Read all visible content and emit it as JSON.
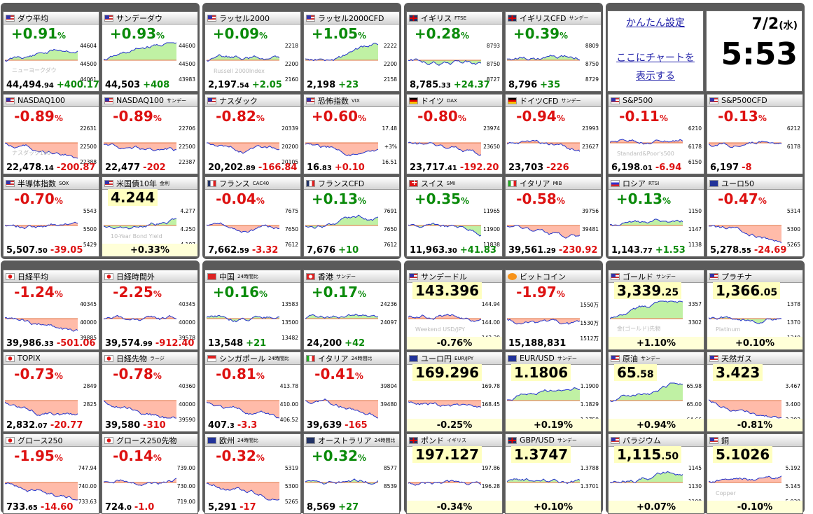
{
  "widgets": {
    "settings_link": "かんたん設定",
    "chart_link_1": "ここにチャートを",
    "chart_link_2": "表示する",
    "date": "7/2",
    "weekday": "(水)",
    "time": "5:53"
  },
  "tiles": [
    {
      "flag": "us",
      "name": "ダウ平均",
      "sub": "",
      "change": "+0.91",
      "unit": "%",
      "dir": "up",
      "price": "44,494",
      "price_dec": ".94",
      "chg": "+400.17",
      "cdir": "up",
      "ticks": [
        "44604",
        "44500",
        "44061"
      ],
      "wm": "ニューヨークダウ",
      "path": "up"
    },
    {
      "flag": "us",
      "name": "サンデーダウ",
      "sub": "",
      "change": "+0.93",
      "unit": "%",
      "dir": "up",
      "price": "44,503",
      "price_dec": "",
      "chg": "+408",
      "cdir": "up",
      "ticks": [
        "44600",
        "44500",
        "43983"
      ],
      "wm": "",
      "path": "up"
    },
    {
      "flag": "us",
      "name": "ラッセル2000",
      "sub": "",
      "change": "+0.09",
      "unit": "%",
      "dir": "up",
      "price": "2,197",
      "price_dec": ".54",
      "chg": "+2.05",
      "cdir": "up",
      "ticks": [
        "2218",
        "2200",
        "2160"
      ],
      "wm": "Russell 2000Index",
      "path": "flat"
    },
    {
      "flag": "us",
      "name": "ラッセル2000CFD",
      "sub": "",
      "change": "+1.05",
      "unit": "%",
      "dir": "up",
      "price": "2,198",
      "price_dec": "",
      "chg": "+23",
      "cdir": "up",
      "ticks": [
        "2222",
        "2200",
        "2158"
      ],
      "wm": "",
      "path": "up"
    },
    {
      "flag": "gb",
      "name": "イギリス",
      "sub": "FTSE",
      "change": "+0.28",
      "unit": "%",
      "dir": "up",
      "price": "8,785",
      "price_dec": ".33",
      "chg": "+24.37",
      "cdir": "up",
      "ticks": [
        "8793",
        "8750",
        "8727"
      ],
      "wm": "",
      "path": "flat"
    },
    {
      "flag": "gb",
      "name": "イギリスCFD",
      "sub": "サンデー",
      "change": "+0.39",
      "unit": "%",
      "dir": "up",
      "price": "8,796",
      "price_dec": "",
      "chg": "+35",
      "cdir": "up",
      "ticks": [
        "8809",
        "8750",
        "8729"
      ],
      "wm": "",
      "path": "flat"
    },
    {
      "flag": "us",
      "name": "NASDAQ100",
      "sub": "",
      "change": "-0.89",
      "unit": "%",
      "dir": "dn",
      "price": "22,478",
      "price_dec": ".14",
      "chg": "-200.87",
      "cdir": "dn",
      "ticks": [
        "22631",
        "22500",
        "22388"
      ],
      "wm": "ナスダック100",
      "path": "down"
    },
    {
      "flag": "us",
      "name": "NASDAQ100",
      "sub": "サンデー",
      "change": "-0.89",
      "unit": "%",
      "dir": "dn",
      "price": "22,477",
      "price_dec": "",
      "chg": "-202",
      "cdir": "dn",
      "ticks": [
        "22706",
        "22500",
        "22387"
      ],
      "wm": "",
      "path": "down"
    },
    {
      "flag": "us",
      "name": "ナスダック",
      "sub": "",
      "change": "-0.82",
      "unit": "%",
      "dir": "dn",
      "price": "20,202",
      "price_dec": ".89",
      "chg": "-166.84",
      "cdir": "dn",
      "ticks": [
        "20339",
        "20200",
        "20105"
      ],
      "wm": "",
      "path": "down"
    },
    {
      "flag": "us",
      "name": "恐怖指数",
      "sub": "VIX",
      "change": "+0.60",
      "unit": "%",
      "dir": "dn",
      "price": "16",
      "price_dec": ".83",
      "chg": "+0.10",
      "cdir": "dn",
      "ticks": [
        "17.48",
        "+3%",
        "16.51"
      ],
      "wm": "",
      "path": "down"
    },
    {
      "flag": "de",
      "name": "ドイツ",
      "sub": "DAX",
      "change": "-0.80",
      "unit": "%",
      "dir": "dn",
      "price": "23,717",
      "price_dec": ".41",
      "chg": "-192.20",
      "cdir": "dn",
      "ticks": [
        "23974",
        "23650",
        ""
      ],
      "wm": "",
      "path": "down"
    },
    {
      "flag": "de",
      "name": "ドイツCFD",
      "sub": "サンデー",
      "change": "-0.94",
      "unit": "%",
      "dir": "dn",
      "price": "23,703",
      "price_dec": "",
      "chg": "-226",
      "cdir": "dn",
      "ticks": [
        "23993",
        "23627",
        ""
      ],
      "wm": "",
      "path": "down"
    },
    {
      "flag": "us",
      "name": "S&P500",
      "sub": "",
      "change": "-0.11",
      "unit": "%",
      "dir": "dn",
      "price": "6,198",
      "price_dec": ".01",
      "chg": "-6.94",
      "cdir": "dn",
      "ticks": [
        "6210",
        "6178",
        "6150"
      ],
      "wm": "Standard&Poor's500",
      "path": "flat"
    },
    {
      "flag": "us",
      "name": "S&P500CFD",
      "sub": "",
      "change": "-0.13",
      "unit": "%",
      "dir": "dn",
      "price": "6,197",
      "price_dec": "",
      "chg": "-8",
      "cdir": "dn",
      "ticks": [
        "6212",
        "6178",
        ""
      ],
      "wm": "",
      "path": "flat"
    },
    {
      "flag": "us",
      "name": "半導体指数",
      "sub": "SOX",
      "change": "-0.70",
      "unit": "%",
      "dir": "dn",
      "price": "5,507",
      "price_dec": ".50",
      "chg": "-39.05",
      "cdir": "dn",
      "ticks": [
        "5543",
        "5500",
        "5429"
      ],
      "wm": "",
      "path": "flat"
    },
    {
      "flag": "us",
      "name": "米国債10年",
      "sub": "金利",
      "change": "4.244",
      "unit": "",
      "dir": "big",
      "price": "",
      "price_dec": "",
      "chg": "+0.33%",
      "cdir": "up",
      "ticks": [
        "4.277",
        "4.250",
        "4.187"
      ],
      "wm": "10-Year Bond Yield",
      "path": "up"
    },
    {
      "flag": "fr",
      "name": "フランス",
      "sub": "CAC40",
      "change": "-0.04",
      "unit": "%",
      "dir": "dn",
      "price": "7,662",
      "price_dec": ".59",
      "chg": "-3.32",
      "cdir": "dn",
      "ticks": [
        "7675",
        "7650",
        "7612"
      ],
      "wm": "",
      "path": "flat"
    },
    {
      "flag": "fr",
      "name": "フランスCFD",
      "sub": "",
      "change": "+0.13",
      "unit": "%",
      "dir": "up",
      "price": "7,676",
      "price_dec": "",
      "chg": "+10",
      "cdir": "up",
      "ticks": [
        "7691",
        "7650",
        "7612"
      ],
      "wm": "",
      "path": "flat"
    },
    {
      "flag": "ch",
      "name": "スイス",
      "sub": "SMI",
      "change": "+0.35",
      "unit": "%",
      "dir": "up",
      "price": "11,963",
      "price_dec": ".30",
      "chg": "+41.83",
      "cdir": "up",
      "ticks": [
        "11965",
        "11900",
        "11838"
      ],
      "wm": "",
      "path": "down"
    },
    {
      "flag": "it",
      "name": "イタリア",
      "sub": "MIB",
      "change": "-0.58",
      "unit": "%",
      "dir": "dn",
      "price": "39,561",
      "price_dec": ".29",
      "chg": "-230.92",
      "cdir": "dn",
      "ticks": [
        "39756",
        "39481",
        ""
      ],
      "wm": "",
      "path": "down"
    },
    {
      "flag": "ru",
      "name": "ロシア",
      "sub": "RTSI",
      "change": "+0.13",
      "unit": "%",
      "dir": "up",
      "price": "1,143",
      "price_dec": ".77",
      "chg": "+1.53",
      "cdir": "up",
      "ticks": [
        "1150",
        "1147",
        "1138"
      ],
      "wm": "",
      "path": "flat"
    },
    {
      "flag": "eu",
      "name": "ユーロ50",
      "sub": "",
      "change": "-0.47",
      "unit": "%",
      "dir": "dn",
      "price": "5,278",
      "price_dec": ".55",
      "chg": "-24.69",
      "cdir": "dn",
      "ticks": [
        "5314",
        "5300",
        "5265"
      ],
      "wm": "",
      "path": "down"
    },
    {
      "flag": "jp",
      "name": "日経平均",
      "sub": "",
      "change": "-1.24",
      "unit": "%",
      "dir": "dn",
      "price": "39,986",
      "price_dec": ".33",
      "chg": "-501.06",
      "cdir": "dn",
      "ticks": [
        "40345",
        "40000",
        "39885"
      ],
      "wm": "",
      "path": "down"
    },
    {
      "flag": "jp",
      "name": "日経時間外",
      "sub": "",
      "change": "-2.25",
      "unit": "%",
      "dir": "dn",
      "price": "39,574",
      "price_dec": ".99",
      "chg": "-912.40",
      "cdir": "dn",
      "ticks": [
        "40345",
        "40000",
        "39578"
      ],
      "wm": "",
      "path": "down"
    },
    {
      "flag": "cn",
      "name": "中国",
      "sub": "24時間比",
      "change": "+0.16",
      "unit": "%",
      "dir": "up",
      "price": "13,548",
      "price_dec": "",
      "chg": "+21",
      "cdir": "up",
      "ticks": [
        "13583",
        "13500",
        "13482"
      ],
      "wm": "",
      "path": "flat"
    },
    {
      "flag": "hk",
      "name": "香港",
      "sub": "サンデー",
      "change": "+0.17",
      "unit": "%",
      "dir": "up",
      "price": "24,200",
      "price_dec": "",
      "chg": "+42",
      "cdir": "up",
      "ticks": [
        "24236",
        "24097",
        ""
      ],
      "wm": "",
      "path": "flat"
    },
    {
      "flag": "us",
      "name": "サンデードル",
      "sub": "",
      "change": "143.396",
      "unit": "",
      "dir": "big",
      "price": "",
      "price_dec": "",
      "chg": "-0.76%",
      "cdir": "dn",
      "ticks": [
        "144.94",
        "144.00",
        "143.39"
      ],
      "wm": "Weekend USD/JPY",
      "path": "flat"
    },
    {
      "flag": "btc",
      "name": "ビットコイン",
      "sub": "",
      "change": "-1.97",
      "unit": "%",
      "dir": "dn",
      "price": "15,188,831",
      "price_dec": "",
      "chg": "",
      "cdir": "dn",
      "ticks": [
        "1550万",
        "1530万",
        "1512万"
      ],
      "wm": "",
      "path": "down"
    },
    {
      "flag": "jp",
      "name": "TOPIX",
      "sub": "",
      "change": "-0.73",
      "unit": "%",
      "dir": "dn",
      "price": "2,832",
      "price_dec": ".07",
      "chg": "-20.77",
      "cdir": "dn",
      "ticks": [
        "2849",
        "2825",
        ""
      ],
      "wm": "",
      "path": "down"
    },
    {
      "flag": "jp",
      "name": "日経先物",
      "sub": "ラージ",
      "change": "-0.78",
      "unit": "%",
      "dir": "dn",
      "price": "39,580",
      "price_dec": "",
      "chg": "-310",
      "cdir": "dn",
      "ticks": [
        "40360",
        "40000",
        "39590"
      ],
      "wm": "",
      "path": "down"
    },
    {
      "flag": "sg",
      "name": "シンガポール",
      "sub": "24時間比",
      "change": "-0.81",
      "unit": "%",
      "dir": "dn",
      "price": "407",
      "price_dec": ".3",
      "chg": "-3.3",
      "cdir": "dn",
      "ticks": [
        "413.78",
        "410.00",
        "406.52"
      ],
      "wm": "",
      "path": "down"
    },
    {
      "flag": "it",
      "name": "イタリア",
      "sub": "24時間比",
      "change": "-0.41",
      "unit": "%",
      "dir": "dn",
      "price": "39,639",
      "price_dec": "",
      "chg": "-165",
      "cdir": "dn",
      "ticks": [
        "39804",
        "39480",
        ""
      ],
      "wm": "",
      "path": "down"
    },
    {
      "flag": "eu",
      "name": "ユーロ円",
      "sub": "EUR/JPY",
      "change": "169.296",
      "unit": "",
      "dir": "big",
      "price": "",
      "price_dec": "",
      "chg": "-0.25%",
      "cdir": "dn",
      "ticks": [
        "169.78",
        "168.45",
        ""
      ],
      "wm": "",
      "path": "down"
    },
    {
      "flag": "eu",
      "name": "EUR/USD",
      "sub": "サンデー",
      "change": "1.1806",
      "unit": "",
      "dir": "big",
      "price": "",
      "price_dec": "",
      "chg": "+0.19%",
      "cdir": "up",
      "ticks": [
        "1.1900",
        "1.1829",
        "1.1759"
      ],
      "wm": "",
      "path": "up"
    },
    {
      "flag": "jp",
      "name": "グロース250",
      "sub": "",
      "change": "-1.95",
      "unit": "%",
      "dir": "dn",
      "price": "733",
      "price_dec": ".65",
      "chg": "-14.60",
      "cdir": "dn",
      "ticks": [
        "747.94",
        "740.00",
        "733.63"
      ],
      "wm": "",
      "path": "down"
    },
    {
      "flag": "jp",
      "name": "グロース250先物",
      "sub": "",
      "change": "-0.14",
      "unit": "%",
      "dir": "dn",
      "price": "724",
      "price_dec": ".0",
      "chg": "-1.0",
      "cdir": "dn",
      "ticks": [
        "739.00",
        "730.00",
        "719.00"
      ],
      "wm": "",
      "path": "flat"
    },
    {
      "flag": "eu",
      "name": "欧州",
      "sub": "24時間比",
      "change": "-0.32",
      "unit": "%",
      "dir": "dn",
      "price": "5,291",
      "price_dec": "",
      "chg": "-17",
      "cdir": "dn",
      "ticks": [
        "5319",
        "5300",
        "5265"
      ],
      "wm": "",
      "path": "down"
    },
    {
      "flag": "au",
      "name": "オーストラリア",
      "sub": "24時間比",
      "change": "+0.32",
      "unit": "%",
      "dir": "up",
      "price": "8,569",
      "price_dec": "",
      "chg": "+27",
      "cdir": "up",
      "ticks": [
        "8577",
        "8539",
        ""
      ],
      "wm": "",
      "path": "flat"
    },
    {
      "flag": "gb",
      "name": "ポンド",
      "sub": "イギリス",
      "change": "197.127",
      "unit": "",
      "dir": "big",
      "price": "",
      "price_dec": "",
      "chg": "-0.34%",
      "cdir": "dn",
      "ticks": [
        "197.86",
        "196.28",
        ""
      ],
      "wm": "",
      "path": "down"
    },
    {
      "flag": "gb",
      "name": "GBP/USD",
      "sub": "サンデー",
      "change": "1.3747",
      "unit": "",
      "dir": "big",
      "price": "",
      "price_dec": "",
      "chg": "+0.10%",
      "cdir": "up",
      "ticks": [
        "1.3788",
        "1.3701",
        ""
      ],
      "wm": "",
      "path": "flat"
    },
    {
      "flag": "us",
      "name": "ゴールド",
      "sub": "サンデー",
      "change": "3,339",
      "unit": ".25",
      "dir": "big",
      "price": "",
      "price_dec": "",
      "chg": "+1.10%",
      "cdir": "up",
      "ticks": [
        "3357",
        "3302",
        ""
      ],
      "wm": "金(ゴールド)先物",
      "path": "up"
    },
    {
      "flag": "us",
      "name": "プラチナ",
      "sub": "",
      "change": "1,366",
      "unit": ".05",
      "dir": "big",
      "price": "",
      "price_dec": "",
      "chg": "+0.10%",
      "cdir": "up",
      "ticks": [
        "1378",
        "1370",
        "1340"
      ],
      "wm": "Platinum",
      "path": "flat"
    },
    {
      "flag": "us",
      "name": "原油",
      "sub": "サンデー",
      "change": "65",
      "unit": ".58",
      "dir": "big",
      "price": "",
      "price_dec": "",
      "chg": "+0.94%",
      "cdir": "up",
      "ticks": [
        "65.98",
        "65.00",
        "64.66"
      ],
      "wm": "",
      "path": "up"
    },
    {
      "flag": "us",
      "name": "天然ガス",
      "sub": "",
      "change": "3.423",
      "unit": "",
      "dir": "big",
      "price": "",
      "price_dec": "",
      "chg": "-0.81%",
      "cdir": "dn",
      "ticks": [
        "3.467",
        "3.400",
        "3.293"
      ],
      "wm": "",
      "path": "down"
    },
    {
      "flag": "us",
      "name": "パラジウム",
      "sub": "",
      "change": "1,115",
      "unit": ".50",
      "dir": "big",
      "price": "",
      "price_dec": "",
      "chg": "+0.07%",
      "cdir": "up",
      "ticks": [
        "1145",
        "1130",
        "1109"
      ],
      "wm": "",
      "path": "up"
    },
    {
      "flag": "us",
      "name": "銅",
      "sub": "",
      "change": "5.1026",
      "unit": "",
      "dir": "big",
      "price": "",
      "price_dec": "",
      "chg": "-0.10%",
      "cdir": "dn",
      "ticks": [
        "5.192",
        "5.145",
        "5.030"
      ],
      "wm": "Copper",
      "path": "flat"
    }
  ]
}
